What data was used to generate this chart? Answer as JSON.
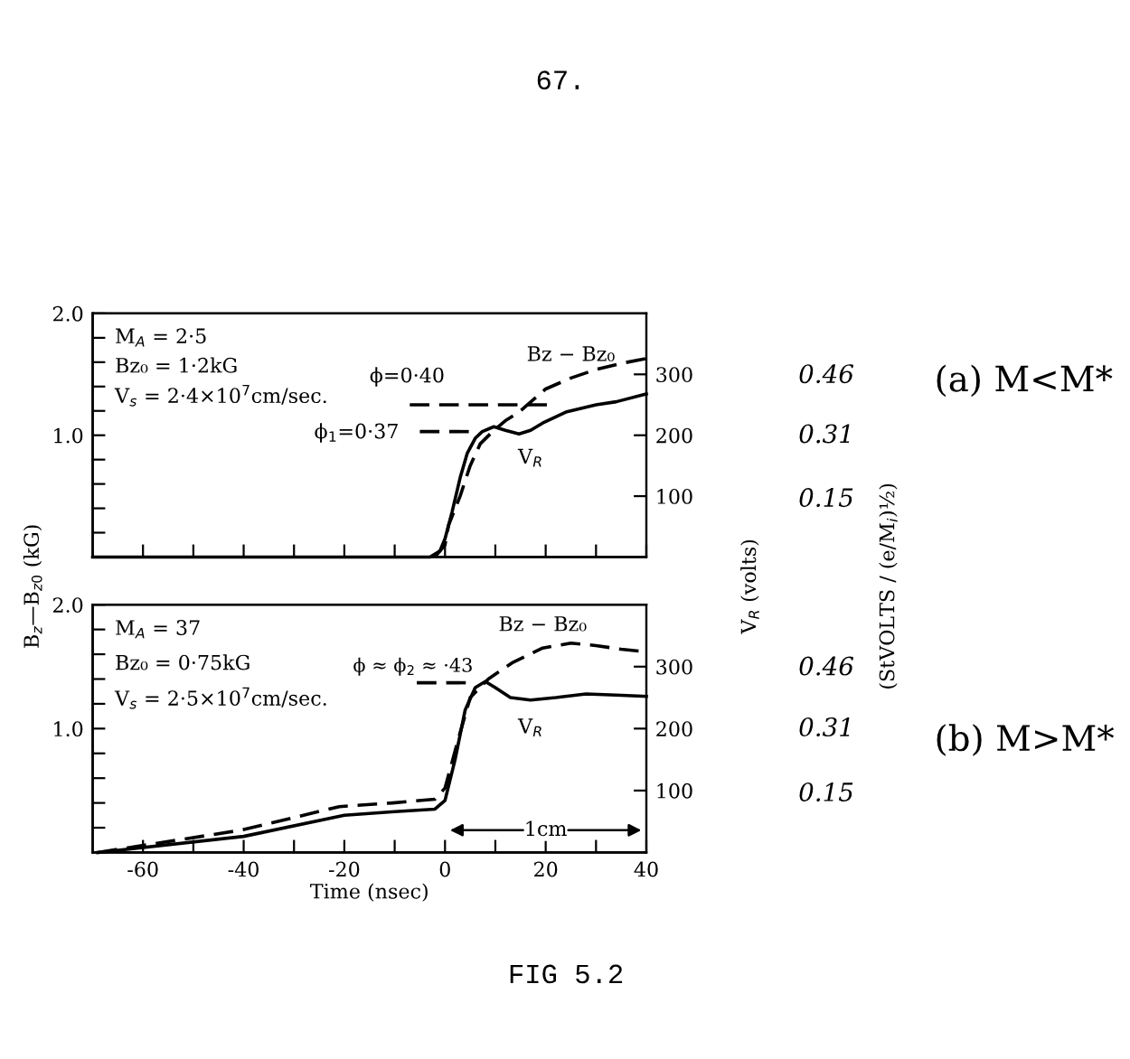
{
  "chart_data": [
    {
      "type": "line",
      "ylabel": "B$_{z}$—B$_{z0}$ (kG)",
      "y2label": "V$_{R}$ (volts)",
      "y3label": "(StVOLTS / (e/M$_{i}$)½)",
      "annotations": [
        "M$_{A}$ = 2·5",
        "Bz₀ = 1·2kG",
        "V$_{s}$ = 2·4×10$^{7}$cm/sec.",
        "(a) M<M*",
        "67.",
        "FIG 5.2",
        "ϕ=0·40",
        "ϕ$_{1}$=0·37"
      ],
      "xlim": [
        -70,
        40
      ],
      "xticks": [
        {
          "value": -60,
          "label": null
        },
        {
          "value": -50,
          "label": null
        },
        {
          "value": -40,
          "label": null
        },
        {
          "value": -30,
          "label": null
        },
        {
          "value": -20,
          "label": null
        },
        {
          "value": -10,
          "label": null
        },
        {
          "value": 0,
          "label": null
        },
        {
          "value": 10,
          "label": null
        },
        {
          "value": 20,
          "label": null
        },
        {
          "value": 30,
          "label": null
        },
        {
          "value": 40,
          "label": null
        }
      ],
      "ylim": [
        0,
        2
      ],
      "yticks": [
        {
          "value": 0.2,
          "label": null
        },
        {
          "value": 0.4,
          "label": null
        },
        {
          "value": 0.6,
          "label": null
        },
        {
          "value": 0.8,
          "label": null
        },
        {
          "value": 1,
          "label": "1.0"
        },
        {
          "value": 1.2,
          "label": null
        },
        {
          "value": 1.4,
          "label": null
        },
        {
          "value": 1.6,
          "label": null
        },
        {
          "value": 1.8,
          "label": null
        },
        {
          "value": 2,
          "label": "2.0"
        }
      ],
      "y2lim": [
        0,
        400
      ],
      "y2ticks": [
        100,
        200,
        300
      ],
      "y3lim": [
        0,
        0.61
      ],
      "y3ticks": [
        0.15,
        0.31,
        0.46
      ],
      "tick_labels": "y",
      "grid": false,
      "legend": false,
      "marker": "none",
      "series": [
        {
          "name": "Bz − Bz₀",
          "color": "#000000",
          "line_style": "dashed",
          "x": [
            -2,
            0,
            0.7,
            3,
            5,
            7,
            9.7,
            12,
            14.7,
            20,
            25,
            30,
            35,
            40
          ],
          "values": [
            0,
            0.1,
            0.26,
            0.5,
            0.75,
            0.93,
            1.04,
            1.12,
            1.19,
            1.38,
            1.47,
            1.54,
            1.59,
            1.63
          ]
        },
        {
          "name": "V$_{R}$",
          "color": "#000000",
          "line_style": "solid",
          "axis": "y2",
          "x": [
            -70,
            -3,
            -1,
            0,
            1.4,
            3,
            4.4,
            6,
            7.4,
            9.7,
            12,
            14.7,
            17,
            19.4,
            24,
            30,
            34,
            40
          ],
          "values": [
            0,
            0,
            10,
            30,
            74,
            130,
            170,
            195,
            206,
            214,
            208,
            202,
            208,
            220,
            238,
            250,
            255,
            268
          ]
        },
        {
          "color": "#000000",
          "line_style": "dashed",
          "x": [
            -7,
            21
          ],
          "values": [
            1.25,
            1.25
          ]
        },
        {
          "color": "#000000",
          "line_style": "dashed",
          "x": [
            -5,
            5
          ],
          "values": [
            1.03,
            1.03
          ]
        }
      ]
    },
    {
      "type": "line",
      "xlabel": "Time (nsec)",
      "annotations": [
        "M$_{A}$ = 37",
        "Bz₀ = 0·75kG",
        "V$_{s}$ = 2·5×10$^{7}$cm/sec.",
        "(b) M>M*",
        "ϕ ≈ ϕ$_{2}$ ≈ ·43",
        {
          "text": "1cm",
          "x": 20,
          "y": 0.18
        }
      ],
      "xlim": [
        -70,
        40
      ],
      "xticks": [
        -60,
        {
          "value": -50,
          "label": null
        },
        -40,
        {
          "value": -30,
          "label": null
        },
        -20,
        {
          "value": -10,
          "label": null
        },
        0,
        {
          "value": 10,
          "label": null
        },
        20,
        {
          "value": 30,
          "label": null
        },
        40
      ],
      "ylim": [
        0,
        2
      ],
      "yticks": [
        {
          "value": 0.2,
          "label": null
        },
        {
          "value": 0.4,
          "label": null
        },
        {
          "value": 0.6,
          "label": null
        },
        {
          "value": 0.8,
          "label": null
        },
        {
          "value": 1,
          "label": "1.0"
        },
        {
          "value": 1.2,
          "label": null
        },
        {
          "value": 1.4,
          "label": null
        },
        {
          "value": 1.6,
          "label": null
        },
        {
          "value": 1.8,
          "label": null
        },
        {
          "value": 2,
          "label": "2.0"
        }
      ],
      "y2lim": [
        0,
        400
      ],
      "y2ticks": [
        100,
        200,
        300
      ],
      "y3lim": [
        0,
        0.61
      ],
      "y3ticks": [
        0.15,
        0.31,
        0.46
      ],
      "grid": false,
      "legend": false,
      "marker": "none",
      "series": [
        {
          "name": "Bz − Bz₀",
          "color": "#000000",
          "line_style": "dashed",
          "x": [
            -69,
            -40.5,
            -21,
            -10.4,
            -2,
            0,
            2.6,
            5,
            8.6,
            13.3,
            19.4,
            25,
            30,
            35,
            40
          ],
          "values": [
            0,
            0.18,
            0.37,
            0.4,
            0.43,
            0.52,
            0.91,
            1.25,
            1.4,
            1.53,
            1.65,
            1.69,
            1.67,
            1.64,
            1.62
          ]
        },
        {
          "name": "V$_{R}$",
          "color": "#000000",
          "line_style": "solid",
          "axis": "y2",
          "x": [
            -69,
            -40,
            -20,
            -10,
            -2,
            0,
            2,
            4,
            6,
            8,
            10,
            13,
            17,
            22,
            28,
            34,
            40
          ],
          "values": [
            0,
            26,
            60,
            66,
            70,
            84,
            150,
            230,
            266,
            276,
            266,
            250,
            246,
            250,
            256,
            254,
            252
          ]
        },
        {
          "color": "#000000",
          "line_style": "dashed",
          "x": [
            -5.6,
            5
          ],
          "values": [
            1.37,
            1.37
          ]
        }
      ]
    }
  ]
}
